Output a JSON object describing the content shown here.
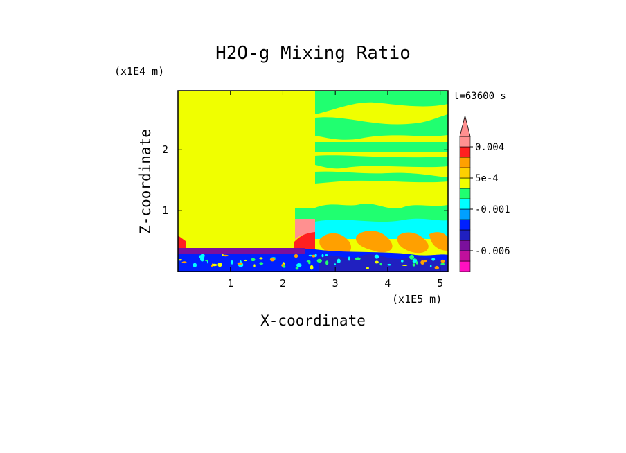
{
  "chart_data": {
    "type": "heatmap",
    "title": "H2O-g Mixing Ratio",
    "xlabel": "X-coordinate",
    "ylabel": "Z-coordinate",
    "x_scale_label": "(x1E5 m)",
    "y_scale_label": "(x1E4 m)",
    "time_label": "t=63600 s",
    "xlim": [
      0,
      5.15
    ],
    "ylim": [
      0,
      2.97
    ],
    "x_ticks": [
      1,
      2,
      3,
      4,
      5
    ],
    "y_ticks": [
      1,
      2
    ],
    "x_tick_labels": [
      "1",
      "2",
      "3",
      "4",
      "5"
    ],
    "y_tick_labels": [
      "1",
      "2"
    ],
    "colorbar": {
      "levels": [
        -0.009,
        -0.0075,
        -0.006,
        -0.0045,
        -0.003,
        -0.002,
        -0.001,
        -0.0005,
        0,
        0.0005,
        0.001,
        0.0025,
        0.004,
        0.0055
      ],
      "tick_labels": [
        {
          "value": -0.006,
          "label": "-0.006"
        },
        {
          "value": -0.001,
          "label": "-0.001"
        },
        {
          "value": 0.0005,
          "label": "5e-4"
        },
        {
          "value": 0.004,
          "label": "0.004"
        }
      ],
      "colors": [
        "#ff10c0",
        "#c0109c",
        "#7b109c",
        "#2020c0",
        "#0020ff",
        "#00a0ff",
        "#00ffff",
        "#20ff70",
        "#f0ff00",
        "#ffd000",
        "#ffa000",
        "#ff2020",
        "#ff9090"
      ],
      "extend": "max"
    },
    "regions_note_free": true,
    "region_colors": {
      "background": "#f0ff00",
      "green": "#20ff70",
      "orange": "#ffa000",
      "cyan": "#00ffff",
      "blue": "#0020ff",
      "darkblue": "#2020c0",
      "purple": "#7b109c",
      "red": "#ff2020",
      "lightred": "#ff9090"
    }
  }
}
